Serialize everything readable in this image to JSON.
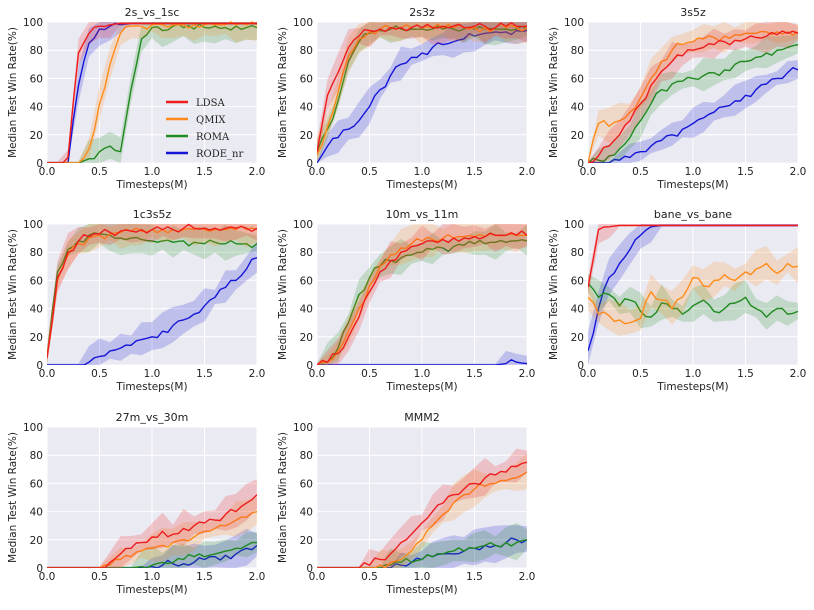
{
  "colors": {
    "LDSA": "#ee1c1c",
    "QMIX": "#ff8c1a",
    "ROMA": "#1f8a1f",
    "RODE_nr": "#1515d8",
    "panel_bg": "#eaeaf2",
    "grid": "#ffffff"
  },
  "legend": {
    "entries": [
      "LDSA",
      "QMIX",
      "ROMA",
      "RODE_nr"
    ],
    "placement": "inside first panel, center-right"
  },
  "chart_data": [
    {
      "type": "line",
      "title": "2s_vs_1sc",
      "xlabel": "Timesteps(M)",
      "ylabel": "Median Test Win Rate(%)",
      "xlim": [
        0,
        2.0
      ],
      "ylim": [
        0,
        100
      ],
      "xticks": [
        "0.0",
        "0.5",
        "1.0",
        "1.5",
        "2.0"
      ],
      "yticks": [
        "0",
        "20",
        "40",
        "60",
        "80",
        "100"
      ],
      "grid": true,
      "x": [
        0,
        0.1,
        0.2,
        0.3,
        0.4,
        0.5,
        0.6,
        0.7,
        0.8,
        0.9,
        1.0,
        1.1,
        1.2,
        1.3,
        1.4,
        1.5,
        1.6,
        1.7,
        1.8,
        1.9,
        2.0
      ],
      "series": [
        {
          "name": "LDSA",
          "values": [
            0,
            0,
            4,
            78,
            92,
            97,
            98,
            99,
            99,
            99,
            99,
            99,
            99,
            99,
            99,
            99,
            99,
            99,
            99,
            99,
            99
          ]
        },
        {
          "name": "QMIX",
          "values": [
            0,
            0,
            0,
            0,
            10,
            42,
            70,
            92,
            97,
            97,
            98,
            98,
            98,
            98,
            98,
            98,
            98,
            98,
            98,
            98,
            98
          ]
        },
        {
          "name": "ROMA",
          "values": [
            0,
            0,
            0,
            0,
            3,
            8,
            12,
            8,
            52,
            88,
            96,
            94,
            97,
            96,
            95,
            96,
            97,
            96,
            97,
            96,
            96
          ]
        },
        {
          "name": "RODE_nr",
          "values": [
            0,
            0,
            0,
            55,
            85,
            95,
            97,
            98,
            99,
            99,
            99,
            99,
            99,
            99,
            99,
            99,
            99,
            99,
            99,
            99,
            99
          ]
        }
      ]
    },
    {
      "type": "line",
      "title": "2s3z",
      "xlabel": "Timesteps(M)",
      "ylabel": "Median Test Win Rate(%)",
      "xlim": [
        0,
        2.0
      ],
      "ylim": [
        0,
        100
      ],
      "xticks": [
        "0.0",
        "0.5",
        "1.0",
        "1.5",
        "2.0"
      ],
      "yticks": [
        "0",
        "20",
        "40",
        "60",
        "80",
        "100"
      ],
      "grid": true,
      "x": [
        0,
        0.1,
        0.2,
        0.3,
        0.4,
        0.5,
        0.6,
        0.7,
        0.8,
        0.9,
        1.0,
        1.1,
        1.2,
        1.3,
        1.4,
        1.5,
        1.6,
        1.7,
        1.8,
        1.9,
        2.0
      ],
      "series": [
        {
          "name": "LDSA",
          "values": [
            8,
            48,
            64,
            82,
            90,
            94,
            95,
            96,
            96,
            96,
            96,
            96,
            97,
            97,
            96,
            97,
            97,
            96,
            97,
            97,
            97
          ]
        },
        {
          "name": "QMIX",
          "values": [
            6,
            26,
            50,
            76,
            88,
            93,
            95,
            96,
            96,
            96,
            96,
            96,
            96,
            96,
            96,
            96,
            96,
            96,
            96,
            96,
            96
          ]
        },
        {
          "name": "ROMA",
          "values": [
            8,
            24,
            44,
            72,
            86,
            92,
            94,
            95,
            95,
            95,
            95,
            95,
            95,
            95,
            95,
            95,
            95,
            95,
            95,
            95,
            95
          ]
        },
        {
          "name": "RODE_nr",
          "values": [
            0,
            12,
            18,
            24,
            30,
            40,
            52,
            62,
            70,
            75,
            78,
            82,
            84,
            86,
            88,
            90,
            92,
            93,
            93,
            94,
            94
          ]
        }
      ]
    },
    {
      "type": "line",
      "title": "3s5z",
      "xlabel": "Timesteps(M)",
      "ylabel": "Median Test Win Rate(%)",
      "xlim": [
        0,
        2.0
      ],
      "ylim": [
        0,
        100
      ],
      "xticks": [
        "0.0",
        "0.5",
        "1.0",
        "1.5",
        "2.0"
      ],
      "yticks": [
        "0",
        "20",
        "40",
        "60",
        "80",
        "100"
      ],
      "grid": true,
      "x": [
        0,
        0.1,
        0.2,
        0.3,
        0.4,
        0.5,
        0.6,
        0.7,
        0.8,
        0.9,
        1.0,
        1.1,
        1.2,
        1.3,
        1.4,
        1.5,
        1.6,
        1.7,
        1.8,
        1.9,
        2.0
      ],
      "series": [
        {
          "name": "LDSA",
          "values": [
            0,
            5,
            12,
            20,
            30,
            42,
            55,
            65,
            72,
            76,
            80,
            82,
            84,
            86,
            87,
            88,
            89,
            90,
            91,
            92,
            92
          ]
        },
        {
          "name": "QMIX",
          "values": [
            0,
            28,
            26,
            30,
            36,
            46,
            60,
            72,
            80,
            84,
            86,
            88,
            89,
            90,
            91,
            92,
            92,
            93,
            93,
            93,
            93
          ]
        },
        {
          "name": "ROMA",
          "values": [
            0,
            2,
            5,
            10,
            18,
            30,
            42,
            52,
            56,
            58,
            60,
            62,
            64,
            66,
            70,
            72,
            75,
            78,
            80,
            82,
            84
          ]
        },
        {
          "name": "RODE_nr",
          "values": [
            0,
            0,
            0,
            2,
            4,
            8,
            12,
            16,
            20,
            24,
            28,
            32,
            36,
            40,
            44,
            48,
            52,
            56,
            60,
            64,
            66
          ]
        }
      ]
    },
    {
      "type": "line",
      "title": "1c3s5z",
      "xlabel": "Timesteps(M)",
      "ylabel": "Median Test Win Rate(%)",
      "xlim": [
        0,
        2.0
      ],
      "ylim": [
        0,
        100
      ],
      "xticks": [
        "0.0",
        "0.5",
        "1.0",
        "1.5",
        "2.0"
      ],
      "yticks": [
        "0",
        "20",
        "40",
        "60",
        "80",
        "100"
      ],
      "grid": true,
      "x": [
        0,
        0.1,
        0.2,
        0.3,
        0.4,
        0.5,
        0.6,
        0.7,
        0.8,
        0.9,
        1.0,
        1.1,
        1.2,
        1.3,
        1.4,
        1.5,
        1.6,
        1.7,
        1.8,
        1.9,
        2.0
      ],
      "series": [
        {
          "name": "LDSA",
          "values": [
            5,
            62,
            80,
            88,
            91,
            93,
            94,
            95,
            95,
            96,
            96,
            96,
            96,
            97,
            97,
            97,
            97,
            97,
            97,
            97,
            97
          ]
        },
        {
          "name": "QMIX",
          "values": [
            5,
            60,
            78,
            86,
            90,
            92,
            93,
            94,
            95,
            95,
            96,
            96,
            96,
            96,
            96,
            96,
            96,
            96,
            96,
            96,
            96
          ]
        },
        {
          "name": "ROMA",
          "values": [
            5,
            66,
            82,
            88,
            92,
            93,
            92,
            90,
            90,
            89,
            88,
            88,
            87,
            88,
            87,
            86,
            87,
            86,
            86,
            86,
            86
          ]
        },
        {
          "name": "RODE_nr",
          "values": [
            0,
            0,
            0,
            0,
            2,
            6,
            10,
            12,
            14,
            18,
            20,
            24,
            28,
            32,
            36,
            42,
            48,
            55,
            60,
            68,
            76
          ]
        }
      ]
    },
    {
      "type": "line",
      "title": "10m_vs_11m",
      "xlabel": "Timesteps(M)",
      "ylabel": "Median Test Win Rate(%)",
      "xlim": [
        0,
        2.0
      ],
      "ylim": [
        0,
        100
      ],
      "xticks": [
        "0.0",
        "0.5",
        "1.0",
        "1.5",
        "2.0"
      ],
      "yticks": [
        "0",
        "20",
        "40",
        "60",
        "80",
        "100"
      ],
      "grid": true,
      "x": [
        0,
        0.1,
        0.2,
        0.3,
        0.4,
        0.5,
        0.6,
        0.7,
        0.8,
        0.9,
        1.0,
        1.1,
        1.2,
        1.3,
        1.4,
        1.5,
        1.6,
        1.7,
        1.8,
        1.9,
        2.0
      ],
      "series": [
        {
          "name": "LDSA",
          "values": [
            0,
            2,
            8,
            20,
            34,
            52,
            66,
            74,
            80,
            84,
            86,
            88,
            89,
            90,
            90,
            91,
            91,
            92,
            92,
            92,
            92
          ]
        },
        {
          "name": "QMIX",
          "values": [
            0,
            2,
            10,
            24,
            40,
            56,
            70,
            78,
            83,
            86,
            88,
            89,
            90,
            90,
            91,
            91,
            91,
            92,
            92,
            92,
            92
          ]
        },
        {
          "name": "ROMA",
          "values": [
            0,
            2,
            12,
            30,
            50,
            62,
            70,
            74,
            76,
            78,
            80,
            82,
            83,
            84,
            85,
            86,
            86,
            87,
            87,
            88,
            88
          ]
        },
        {
          "name": "RODE_nr",
          "values": [
            0,
            0,
            0,
            0,
            0,
            0,
            0,
            0,
            0,
            0,
            0,
            0,
            0,
            0,
            0,
            0,
            0,
            0,
            1,
            2,
            1
          ]
        }
      ]
    },
    {
      "type": "line",
      "title": "bane_vs_bane",
      "xlabel": "Timesteps(M)",
      "ylabel": "Median Test Win Rate(%)",
      "xlim": [
        0,
        2.0
      ],
      "ylim": [
        0,
        100
      ],
      "xticks": [
        "0.0",
        "0.5",
        "1.0",
        "1.5",
        "2.0"
      ],
      "yticks": [
        "0",
        "20",
        "40",
        "60",
        "80",
        "100"
      ],
      "grid": true,
      "x": [
        0,
        0.1,
        0.2,
        0.3,
        0.4,
        0.5,
        0.6,
        0.7,
        0.8,
        0.9,
        1.0,
        1.1,
        1.2,
        1.3,
        1.4,
        1.5,
        1.6,
        1.7,
        1.8,
        1.9,
        2.0
      ],
      "series": [
        {
          "name": "LDSA",
          "values": [
            55,
            96,
            98,
            99,
            99,
            99,
            99,
            99,
            99,
            99,
            99,
            99,
            99,
            99,
            99,
            99,
            99,
            99,
            99,
            99,
            99
          ]
        },
        {
          "name": "QMIX",
          "values": [
            48,
            36,
            35,
            32,
            30,
            33,
            52,
            46,
            40,
            48,
            62,
            56,
            60,
            64,
            60,
            66,
            68,
            72,
            65,
            72,
            70
          ]
        },
        {
          "name": "ROMA",
          "values": [
            58,
            48,
            50,
            42,
            46,
            38,
            34,
            44,
            40,
            36,
            42,
            46,
            38,
            40,
            44,
            48,
            40,
            34,
            40,
            36,
            38
          ]
        },
        {
          "name": "RODE_nr",
          "values": [
            10,
            40,
            62,
            72,
            82,
            92,
            98,
            99,
            99,
            99,
            99,
            99,
            99,
            99,
            99,
            99,
            99,
            99,
            99,
            99,
            99
          ]
        }
      ]
    },
    {
      "type": "line",
      "title": "27m_vs_30m",
      "xlabel": "Timesteps(M)",
      "ylabel": "Median Test Win Rate(%)",
      "xlim": [
        0,
        2.0
      ],
      "ylim": [
        0,
        100
      ],
      "xticks": [
        "0.0",
        "0.5",
        "1.0",
        "1.5",
        "2.0"
      ],
      "yticks": [
        "0",
        "20",
        "40",
        "60",
        "80",
        "100"
      ],
      "grid": true,
      "x": [
        0,
        0.1,
        0.2,
        0.3,
        0.4,
        0.5,
        0.6,
        0.7,
        0.8,
        0.9,
        1.0,
        1.1,
        1.2,
        1.3,
        1.4,
        1.5,
        1.6,
        1.7,
        1.8,
        1.9,
        2.0
      ],
      "series": [
        {
          "name": "LDSA",
          "values": [
            0,
            0,
            0,
            0,
            0,
            0,
            4,
            10,
            14,
            18,
            22,
            26,
            24,
            28,
            30,
            32,
            34,
            38,
            40,
            46,
            52
          ]
        },
        {
          "name": "QMIX",
          "values": [
            0,
            0,
            0,
            0,
            0,
            0,
            2,
            6,
            8,
            12,
            14,
            16,
            18,
            20,
            22,
            26,
            28,
            30,
            34,
            36,
            40
          ]
        },
        {
          "name": "ROMA",
          "values": [
            0,
            0,
            0,
            0,
            0,
            0,
            0,
            0,
            0,
            1,
            2,
            4,
            4,
            6,
            8,
            8,
            10,
            12,
            14,
            16,
            18
          ]
        },
        {
          "name": "RODE_nr",
          "values": [
            0,
            0,
            0,
            0,
            0,
            0,
            0,
            0,
            0,
            0,
            1,
            2,
            3,
            3,
            4,
            6,
            8,
            9,
            10,
            14,
            16
          ]
        }
      ]
    },
    {
      "type": "line",
      "title": "MMM2",
      "xlabel": "Timesteps(M)",
      "ylabel": "Median Test Win Rate(%)",
      "xlim": [
        0,
        2.0
      ],
      "ylim": [
        0,
        100
      ],
      "xticks": [
        "0.0",
        "0.5",
        "1.0",
        "1.5",
        "2.0"
      ],
      "yticks": [
        "0",
        "20",
        "40",
        "60",
        "80",
        "100"
      ],
      "grid": true,
      "x": [
        0,
        0.1,
        0.2,
        0.3,
        0.4,
        0.5,
        0.6,
        0.7,
        0.8,
        0.9,
        1.0,
        1.1,
        1.2,
        1.3,
        1.4,
        1.5,
        1.6,
        1.7,
        1.8,
        1.9,
        2.0
      ],
      "series": [
        {
          "name": "LDSA",
          "values": [
            0,
            0,
            0,
            0,
            0,
            2,
            6,
            10,
            18,
            24,
            32,
            40,
            46,
            52,
            56,
            60,
            64,
            66,
            68,
            72,
            75
          ]
        },
        {
          "name": "QMIX",
          "values": [
            0,
            0,
            0,
            0,
            0,
            0,
            2,
            4,
            6,
            12,
            20,
            30,
            38,
            46,
            52,
            56,
            58,
            60,
            62,
            64,
            68
          ]
        },
        {
          "name": "ROMA",
          "values": [
            0,
            0,
            0,
            0,
            0,
            0,
            0,
            2,
            4,
            4,
            6,
            8,
            10,
            12,
            12,
            14,
            16,
            16,
            18,
            18,
            20
          ]
        },
        {
          "name": "RODE_nr",
          "values": [
            0,
            0,
            0,
            0,
            0,
            0,
            0,
            0,
            2,
            4,
            6,
            8,
            10,
            10,
            12,
            14,
            16,
            16,
            18,
            20,
            20
          ]
        }
      ]
    }
  ]
}
